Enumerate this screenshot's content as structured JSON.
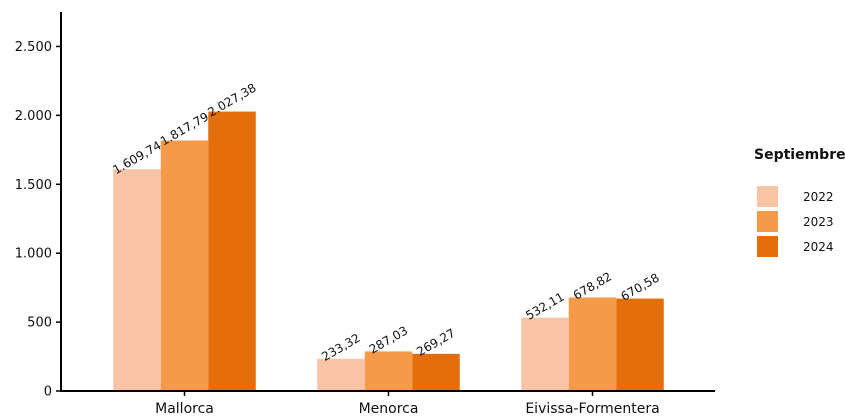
{
  "chart_data": {
    "type": "bar",
    "categories": [
      "Mallorca",
      "Menorca",
      "Eivissa-Formentera"
    ],
    "series": [
      {
        "name": "2022",
        "values": [
          1609.74,
          233.32,
          532.11
        ],
        "labels": [
          "1.609,74",
          "233,32",
          "532,11"
        ],
        "color": "#f9c3a6"
      },
      {
        "name": "2023",
        "values": [
          1817.79,
          287.03,
          678.82
        ],
        "labels": [
          "1.817,79",
          "287,03",
          "678,82"
        ],
        "color": "#f59a48"
      },
      {
        "name": "2024",
        "values": [
          2027.38,
          269.27,
          670.58
        ],
        "labels": [
          "2.027,38",
          "269,27",
          "670,58"
        ],
        "color": "#e46e0c"
      }
    ],
    "yticks": [
      0,
      500,
      1000,
      1500,
      2000,
      2500
    ],
    "ytick_labels": [
      "0",
      "500",
      "1.000",
      "1.500",
      "2.000",
      "2.500"
    ],
    "ylim": [
      0,
      2750
    ],
    "legend": {
      "title": "Septiembre",
      "position": "right"
    },
    "grid": false
  }
}
